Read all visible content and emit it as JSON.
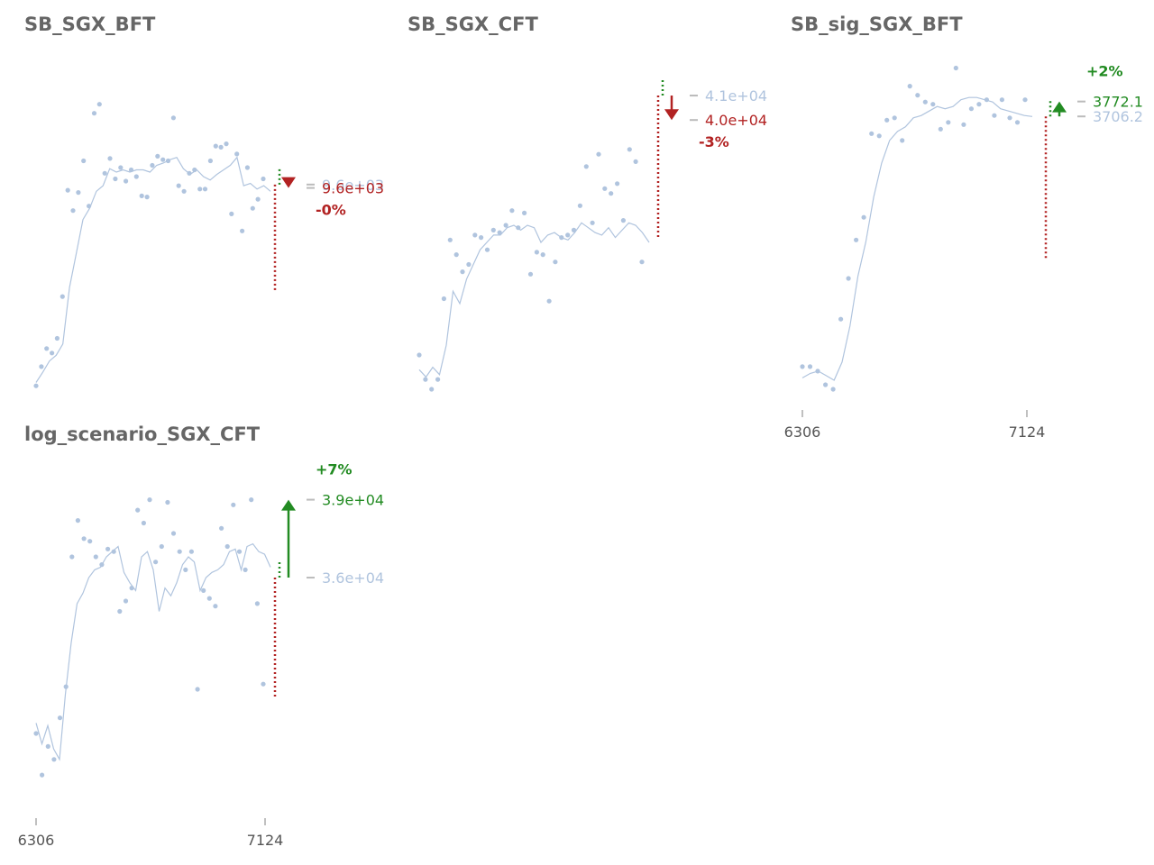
{
  "colors": {
    "marker": "#b0c4de",
    "up": "#228b22",
    "down": "#b22222",
    "title": "#666666",
    "tick": "#555555"
  },
  "chart_data": [
    {
      "type": "scatter",
      "title": "SB_SGX_BFT",
      "x_start": 6306,
      "x_step": 16.36,
      "ylim": [
        7800,
        10700
      ],
      "scatter": [
        7830,
        8000,
        8160,
        8120,
        8250,
        8620,
        9560,
        9380,
        9540,
        9820,
        9420,
        10240,
        10320,
        9710,
        9840,
        9660,
        9760,
        9640,
        9740,
        9680,
        9510,
        9500,
        9780,
        9860,
        9830,
        9820,
        10200,
        9600,
        9550,
        9710,
        9740,
        9570,
        9570,
        9820,
        9950,
        9940,
        9970,
        9350,
        9880,
        9200,
        9760,
        9400,
        9480,
        9660
      ],
      "trend": [
        7860,
        7950,
        8050,
        8100,
        8200,
        8700,
        9000,
        9300,
        9400,
        9550,
        9600,
        9750,
        9720,
        9740,
        9720,
        9740,
        9740,
        9720,
        9780,
        9800,
        9830,
        9850,
        9750,
        9700,
        9740,
        9680,
        9650,
        9700,
        9740,
        9780,
        9850,
        9600,
        9620,
        9570,
        9600,
        9550
      ],
      "last_value": 9610,
      "last_label": "9.6e+03",
      "forecast_value": 9580,
      "forecast_label": "9.6e+03",
      "change_label": "-0%",
      "direction": "down"
    },
    {
      "type": "scatter",
      "title": "SB_SGX_CFT",
      "x_start": 6306,
      "x_step": 16.36,
      "ylim": [
        29000,
        42400
      ],
      "scatter": [
        30400,
        29400,
        29000,
        29400,
        32700,
        35100,
        34500,
        33800,
        34100,
        35300,
        35200,
        34700,
        35500,
        35400,
        35700,
        36300,
        35600,
        36200,
        33700,
        34600,
        34500,
        32600,
        34200,
        35200,
        35300,
        35500,
        36500,
        38100,
        35800,
        38600,
        37200,
        37000,
        37400,
        35900,
        38800,
        38300,
        34200
      ],
      "trend": [
        29800,
        29500,
        29900,
        29600,
        30800,
        33000,
        32500,
        33500,
        34100,
        34700,
        35000,
        35300,
        35300,
        35600,
        35700,
        35500,
        35700,
        35600,
        35000,
        35300,
        35400,
        35200,
        35100,
        35400,
        35800,
        35600,
        35400,
        35300,
        35600,
        35200,
        35500,
        35800,
        35700,
        35400,
        35000
      ],
      "last_value": 41000,
      "last_label": "4.1e+04",
      "forecast_value": 40000,
      "forecast_label": "4.0e+04",
      "change_label": "-3%",
      "direction": "down"
    },
    {
      "type": "scatter",
      "title": "SB_sig_SGX_BFT",
      "x_start": 6306,
      "x_step": 16.36,
      "x_ticks": [
        6306,
        7124
      ],
      "ylim": [
        2500,
        3950
      ],
      "scatter": [
        2600,
        2600,
        2580,
        2520,
        2500,
        2810,
        2990,
        3160,
        3260,
        3630,
        3620,
        3690,
        3700,
        3600,
        3840,
        3800,
        3770,
        3760,
        3650,
        3680,
        3920,
        3670,
        3740,
        3760,
        3780,
        3710,
        3780,
        3700,
        3680,
        3780
      ],
      "trend": [
        2550,
        2570,
        2580,
        2560,
        2540,
        2620,
        2780,
        3000,
        3150,
        3350,
        3500,
        3600,
        3640,
        3660,
        3700,
        3710,
        3730,
        3750,
        3740,
        3750,
        3780,
        3790,
        3790,
        3780,
        3770,
        3740,
        3730,
        3720,
        3710,
        3706
      ],
      "last_value": 3706.2,
      "last_label": "3706.2",
      "forecast_value": 3772.1,
      "forecast_label": "3772.1",
      "change_label": "+2%",
      "direction": "up"
    },
    {
      "type": "scatter",
      "title": "log_scenario_SGX_CFT",
      "x_start": 6306,
      "x_step": 16.36,
      "x_ticks": [
        6306,
        7124
      ],
      "ylim": [
        27500,
        40200
      ],
      "scatter": [
        30000,
        28400,
        29500,
        29000,
        30600,
        31800,
        36800,
        38200,
        37500,
        37400,
        36800,
        36500,
        37100,
        37000,
        34700,
        35100,
        35600,
        38600,
        38100,
        39000,
        36600,
        37200,
        38900,
        37700,
        37000,
        36300,
        37000,
        31700,
        35500,
        35200,
        34900,
        37900,
        37200,
        38800,
        37000,
        36300,
        39000,
        35000,
        31900
      ],
      "trend": [
        30400,
        29600,
        30300,
        29400,
        29000,
        31500,
        33500,
        35000,
        35400,
        36000,
        36300,
        36400,
        36800,
        37000,
        37200,
        36200,
        35800,
        35500,
        36800,
        37000,
        36300,
        34700,
        35600,
        35300,
        35800,
        36500,
        36800,
        36600,
        35500,
        36000,
        36200,
        36300,
        36500,
        37000,
        37100,
        36300,
        37200,
        37300,
        37000,
        36900,
        36400
      ],
      "last_value": 36000,
      "last_label": "3.6e+04",
      "forecast_value": 39000,
      "forecast_label": "3.9e+04",
      "change_label": "+7%",
      "direction": "up"
    }
  ]
}
